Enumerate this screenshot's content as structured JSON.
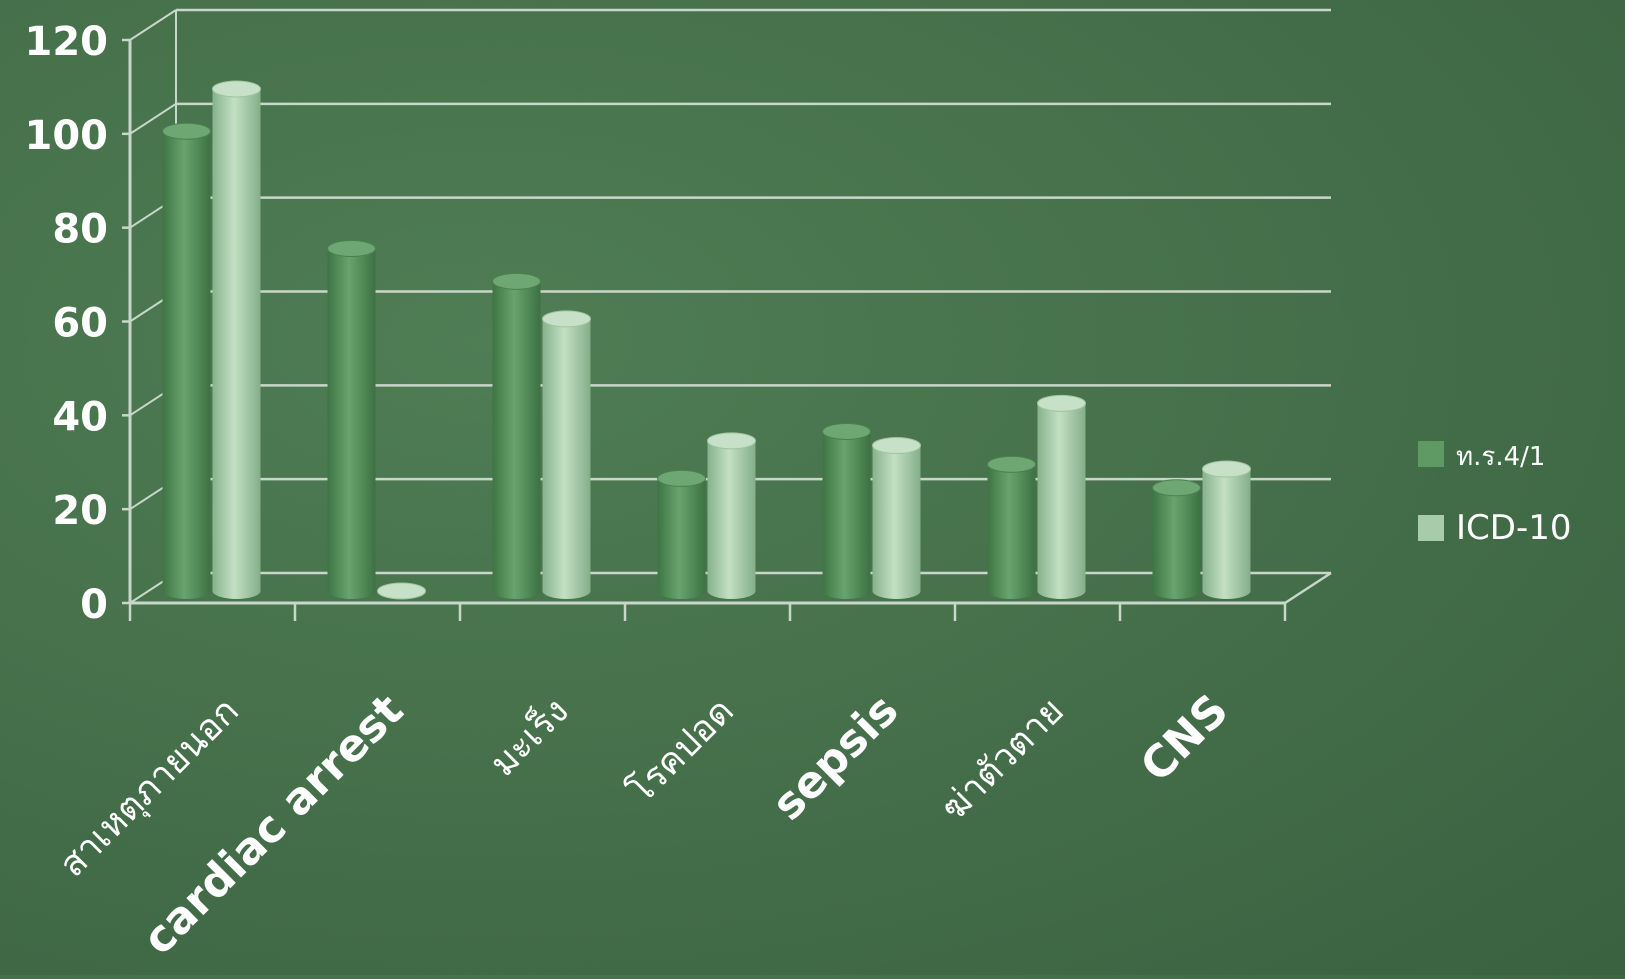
{
  "chart_data": {
    "type": "bar",
    "title": "",
    "xlabel": "",
    "ylabel": "",
    "ylim": [
      0,
      120
    ],
    "yticks": [
      0,
      20,
      40,
      60,
      80,
      100,
      120
    ],
    "grid": true,
    "legend_position": "right",
    "categories": [
      "สาเหตุภายนอก",
      "cardiac arrest",
      "มะเร็ง",
      "โรคปอด",
      "sepsis",
      "ฆ่าตัวตาย",
      "CNS"
    ],
    "series": [
      {
        "name": "ท.ร.4/1",
        "color": "#5f9a64",
        "values": [
          98,
          73,
          66,
          24,
          34,
          27,
          22
        ]
      },
      {
        "name": "ICD-10",
        "color": "#a8ccaa",
        "values": [
          107,
          0,
          58,
          32,
          31,
          40,
          26
        ]
      }
    ]
  }
}
